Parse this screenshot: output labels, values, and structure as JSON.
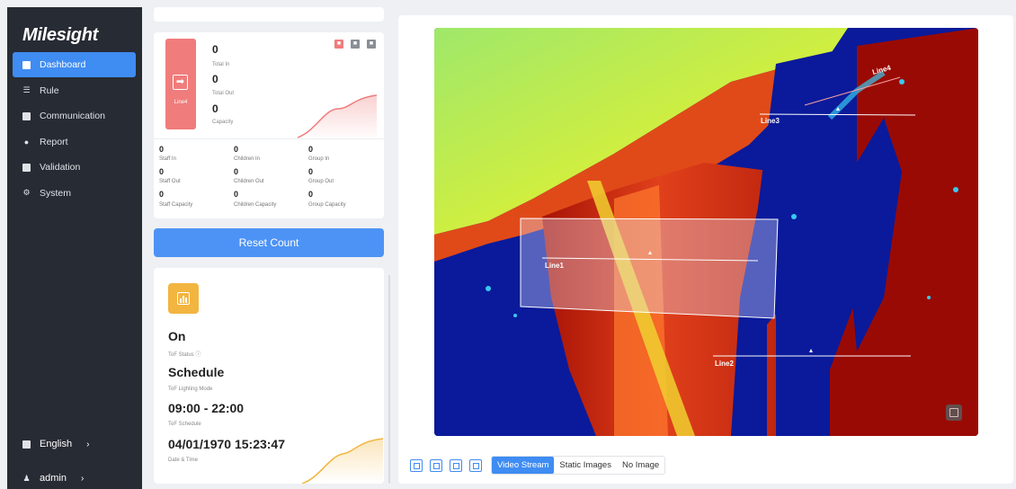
{
  "app": {
    "logo": "Milesight"
  },
  "sidebar": {
    "items": [
      {
        "label": "Dashboard",
        "icon": "dashboard-icon",
        "active": true
      },
      {
        "label": "Rule",
        "icon": "rule-icon"
      },
      {
        "label": "Communication",
        "icon": "communication-icon"
      },
      {
        "label": "Report",
        "icon": "report-icon"
      },
      {
        "label": "Validation",
        "icon": "validation-icon"
      },
      {
        "label": "System",
        "icon": "gear-icon"
      }
    ],
    "language": "English",
    "user": "admin"
  },
  "people_card": {
    "line": "Line4",
    "total_in": "0",
    "total_in_label": "Total In",
    "total_out": "0",
    "total_out_label": "Total Out",
    "capacity": "0",
    "capacity_label": "Capacity",
    "groups": [
      {
        "value": "0",
        "label": "Staff In"
      },
      {
        "value": "0",
        "label": "Children In"
      },
      {
        "value": "0",
        "label": "Group In"
      },
      {
        "value": "0",
        "label": "Staff Out"
      },
      {
        "value": "0",
        "label": "Children Out"
      },
      {
        "value": "0",
        "label": "Group Out"
      },
      {
        "value": "0",
        "label": "Staff Capacity"
      },
      {
        "value": "0",
        "label": "Children Capacity"
      },
      {
        "value": "0",
        "label": "Group Capacity"
      }
    ]
  },
  "reset_button": "Reset Count",
  "tof": {
    "status": "On",
    "status_label": "ToF Status",
    "mode": "Schedule",
    "mode_label": "ToF Lighting Mode",
    "schedule": "09:00 - 22:00",
    "schedule_label": "ToF Schedule",
    "datetime": "04/01/1970 15:23:47",
    "datetime_label": "Date & Time"
  },
  "video": {
    "lines": [
      "Line1",
      "Line2",
      "Line3",
      "Line4"
    ]
  },
  "toolbar": {
    "modes": [
      "Video Stream",
      "Static Images",
      "No Image"
    ],
    "active_mode": "Video Stream"
  },
  "colors": {
    "accent": "#3f8cf2",
    "line_badge": "#f07c7c",
    "tof_icon": "#f2b540"
  }
}
